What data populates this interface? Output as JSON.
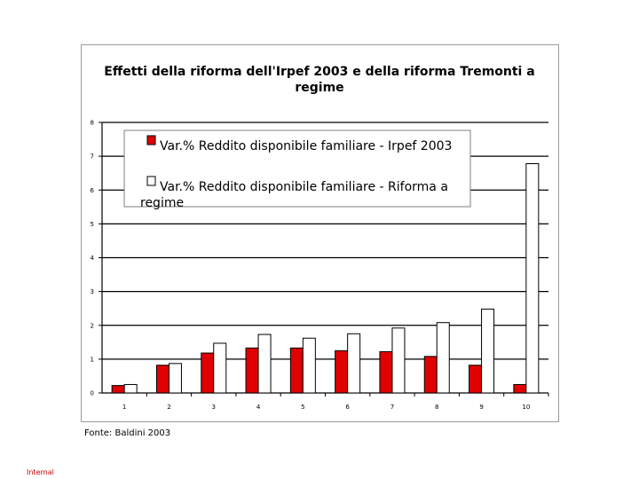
{
  "chart_data": {
    "type": "bar",
    "title": [
      "Effetti della riforma dell'Irpef 2003 e della riforma Tremonti a",
      "regime"
    ],
    "categories": [
      "1",
      "2",
      "3",
      "4",
      "5",
      "6",
      "7",
      "8",
      "9",
      "10"
    ],
    "series": [
      {
        "name": "Var.% Reddito disponibile familiare - Irpef 2003",
        "color": "#e00000",
        "values": [
          0.22,
          0.82,
          1.18,
          1.33,
          1.33,
          1.25,
          1.22,
          1.08,
          0.82,
          0.25
        ]
      },
      {
        "name": "Var.% Reddito disponibile familiare - Riforma a regime",
        "color": "#ffffff",
        "values": [
          0.25,
          0.87,
          1.47,
          1.73,
          1.62,
          1.75,
          1.92,
          2.08,
          2.48,
          6.78
        ]
      }
    ],
    "ylim": [
      0,
      8
    ],
    "yticks": [
      "0",
      "1",
      "2",
      "3",
      "4",
      "5",
      "6",
      "7",
      "8"
    ],
    "grid": true,
    "legend": "top",
    "xlabel": "",
    "ylabel": ""
  },
  "source_note": "Fonte: Baldini 2003",
  "footer_label": "Internal"
}
